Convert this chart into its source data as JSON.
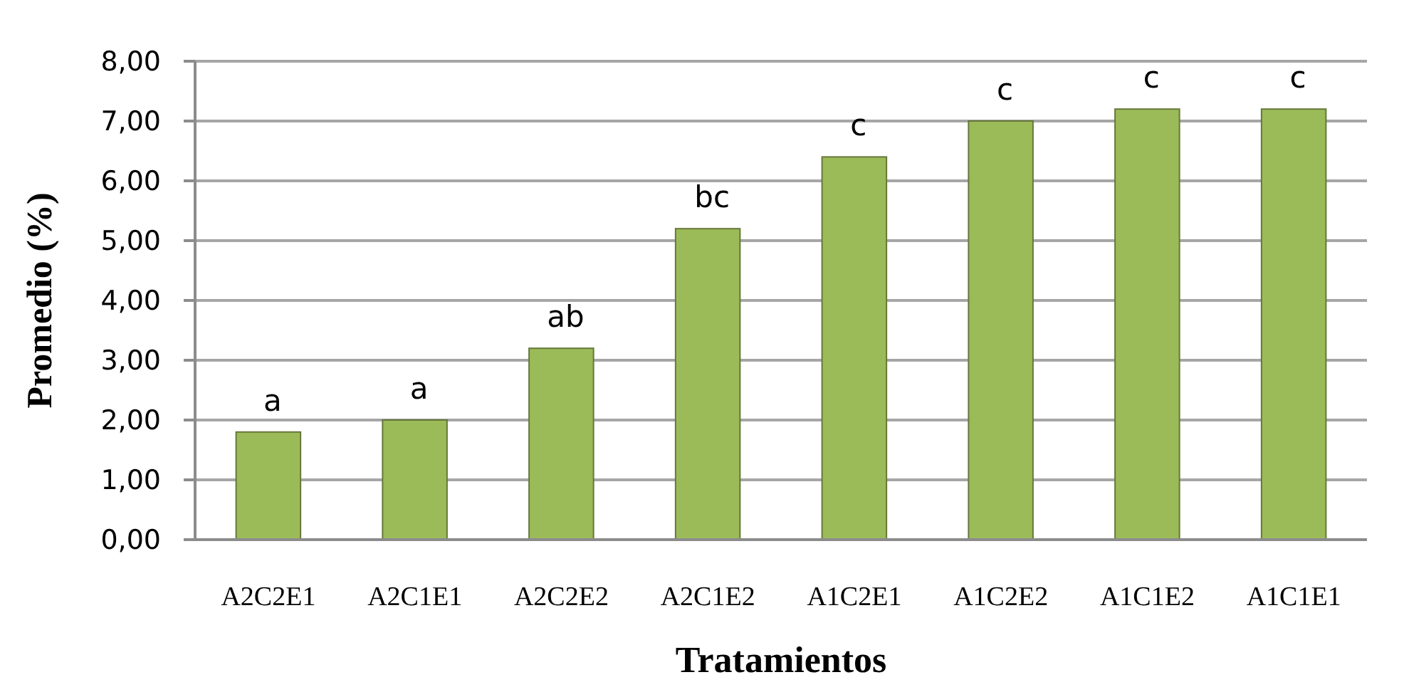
{
  "chart_data": {
    "type": "bar",
    "xlabel": "Tratamientos",
    "ylabel": "Promedio (%)",
    "categories": [
      "A2C2E1",
      "A2C1E1",
      "A2C2E2",
      "A2C1E2",
      "A1C2E1",
      "A1C2E2",
      "A1C1E2",
      "A1C1E1"
    ],
    "values": [
      1.8,
      2.0,
      3.2,
      5.2,
      6.4,
      7.0,
      7.2,
      7.2
    ],
    "color": "#9bbb59",
    "ylim": [
      0,
      8
    ],
    "yticks": [
      {
        "value": 0,
        "label": "0,00"
      },
      {
        "value": 1,
        "label": "1,00"
      },
      {
        "value": 2,
        "label": "2,00"
      },
      {
        "value": 3,
        "label": "3,00"
      },
      {
        "value": 4,
        "label": "4,00"
      },
      {
        "value": 5,
        "label": "5,00"
      },
      {
        "value": 6,
        "label": "6,00"
      },
      {
        "value": 7,
        "label": "7,00"
      },
      {
        "value": 8,
        "label": "8,00"
      }
    ],
    "grid": "y",
    "annotations": [
      {
        "text": "a",
        "x": "A2C2E1",
        "y": 1.8
      },
      {
        "text": "a",
        "x": "A2C1E1",
        "y": 2.0
      },
      {
        "text": "ab",
        "x": "A2C2E2",
        "y": 3.2
      },
      {
        "text": "bc",
        "x": "A2C1E2",
        "y": 5.2
      },
      {
        "text": "c",
        "x": "A1C2E1",
        "y": 6.4
      },
      {
        "text": "c",
        "x": "A1C2E2",
        "y": 7.0
      },
      {
        "text": "c",
        "x": "A1C1E2",
        "y": 7.2
      },
      {
        "text": "c",
        "x": "A1C1E1",
        "y": 7.2
      }
    ]
  }
}
